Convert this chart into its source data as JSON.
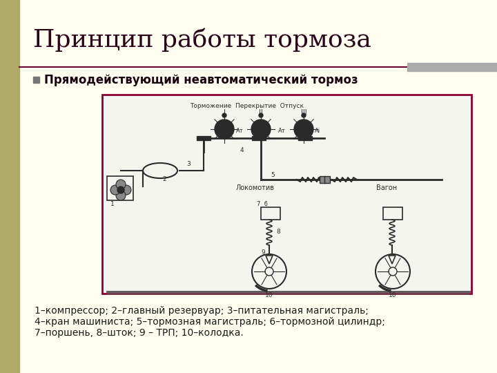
{
  "title": "Принцип работы тормоза",
  "subtitle_bullet": "Прямодействующий неавтоматический тормоз",
  "caption_lines": [
    "1–компрессор; 2–главный резервуар; 3–питательная магистраль;",
    "4–кран машиниста; 5–тормозная магистраль; 6–тормозной цилиндр;",
    "7–поршень, 8–шток; 9 – ТРП; 10–колодка."
  ],
  "bg_color": "#fffff0",
  "sidebar_color": "#b0aa6a",
  "title_color": "#2a001a",
  "subtitle_color": "#1a0010",
  "caption_color": "#1a1a1a",
  "divider_color": "#6b0030",
  "box_border_color": "#8b0030",
  "diagram_bg": "#f5f5f0"
}
